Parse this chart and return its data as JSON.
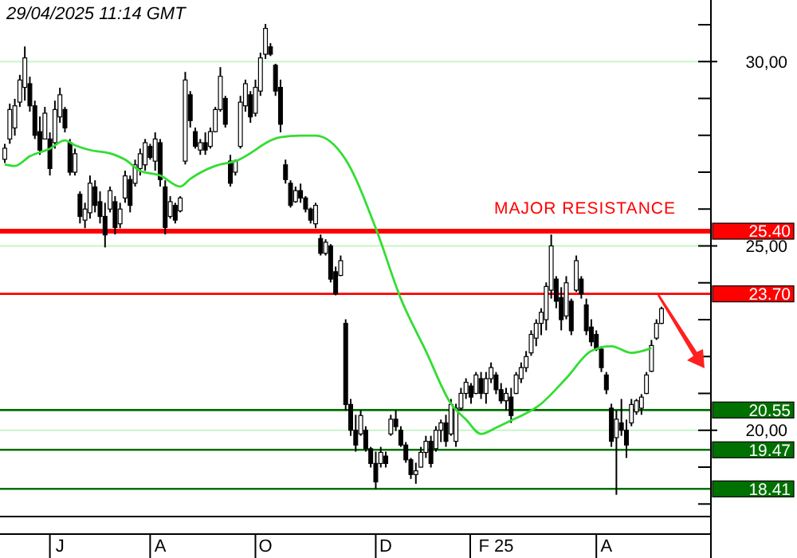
{
  "chart_data": {
    "type": "candlestick",
    "title": "29/04/2025 11:14 GMT",
    "annotations": [
      "MAJOR RESISTANCE"
    ],
    "categories": [
      null,
      null,
      null,
      null,
      null,
      null,
      null,
      null,
      null,
      null,
      null,
      "J",
      null,
      null,
      null,
      null,
      null,
      null,
      null,
      null,
      null,
      null,
      null,
      null,
      null,
      null,
      null,
      null,
      null,
      null,
      null,
      "A",
      null,
      null,
      null,
      null,
      null,
      null,
      null,
      null,
      null,
      null,
      null,
      null,
      null,
      null,
      null,
      null,
      null,
      null,
      null,
      null,
      "O",
      null,
      null,
      null,
      null,
      null,
      null,
      null,
      null,
      null,
      null,
      null,
      null,
      null,
      null,
      null,
      null,
      null,
      null,
      null,
      null,
      null,
      null,
      null,
      "D",
      null,
      null,
      null,
      null,
      null,
      null,
      null,
      null,
      null,
      null,
      null,
      null,
      null,
      null,
      null,
      null,
      null,
      null,
      null,
      null,
      null,
      "F 25",
      null,
      null,
      null,
      null,
      null,
      null,
      null,
      null,
      null,
      null,
      null,
      null,
      null,
      null,
      null,
      null,
      null,
      null,
      null,
      null,
      null,
      "A",
      null,
      null,
      null,
      null,
      null,
      null,
      null,
      null,
      null,
      null,
      null
    ],
    "ylim": [
      17.66,
      31.67
    ],
    "yticks": [
      {
        "value": 20,
        "label": "20,00"
      },
      {
        "value": 25,
        "label": "25,00"
      },
      {
        "value": 30,
        "label": "30,00"
      }
    ],
    "grid": "y",
    "ref_lines": [
      {
        "axis": "y",
        "value": 25.4,
        "label": "25.40",
        "color": "#ff0000"
      },
      {
        "axis": "y",
        "value": 23.7,
        "label": "23.70",
        "color": "#ff0000"
      },
      {
        "axis": "y",
        "value": 20.55,
        "label": "20.55",
        "color": "#007000"
      },
      {
        "axis": "y",
        "value": 19.47,
        "label": "19.47",
        "color": "#007000"
      },
      {
        "axis": "y",
        "value": 18.41,
        "label": "18.41",
        "color": "#007000"
      }
    ],
    "series": [
      {
        "color": "#000000",
        "ohlc": [
          [
            27.35,
            27.77,
            27.25,
            27.65
          ],
          [
            27.9,
            28.86,
            27.77,
            28.7
          ],
          [
            28.2,
            28.99,
            27.99,
            28.8
          ],
          [
            28.9,
            29.64,
            28.77,
            29.5
          ],
          [
            29.3,
            30.41,
            28.94,
            30.1
          ],
          [
            29.4,
            29.59,
            28.64,
            28.8
          ],
          [
            28.8,
            28.94,
            27.9,
            28.0
          ],
          [
            28.1,
            28.51,
            27.47,
            27.6
          ],
          [
            27.9,
            28.77,
            27.9,
            28.6
          ],
          [
            27.9,
            28.08,
            26.91,
            27.1
          ],
          [
            27.8,
            28.94,
            27.64,
            28.7
          ],
          [
            28.5,
            29.29,
            28.34,
            29.1
          ],
          [
            28.7,
            28.77,
            28.08,
            28.2
          ],
          [
            27.8,
            27.9,
            26.91,
            27.0
          ],
          [
            27.0,
            27.64,
            26.91,
            27.5
          ],
          [
            26.4,
            26.48,
            25.61,
            25.8
          ],
          [
            25.7,
            26.17,
            25.48,
            26.0
          ],
          [
            25.9,
            26.91,
            25.74,
            26.7
          ],
          [
            26.6,
            26.78,
            25.91,
            26.1
          ],
          [
            26.2,
            26.48,
            25.61,
            25.8
          ],
          [
            25.8,
            26.17,
            24.96,
            25.3
          ],
          [
            26.0,
            26.61,
            25.91,
            26.5
          ],
          [
            26.2,
            26.35,
            25.31,
            25.5
          ],
          [
            25.6,
            26.17,
            25.48,
            26.0
          ],
          [
            26.3,
            27.04,
            26.17,
            26.9
          ],
          [
            26.8,
            26.91,
            25.91,
            26.1
          ],
          [
            26.7,
            27.34,
            26.61,
            27.2
          ],
          [
            27.1,
            27.64,
            26.91,
            27.5
          ],
          [
            27.2,
            27.9,
            27.04,
            27.8
          ],
          [
            27.7,
            27.77,
            27.34,
            27.4
          ],
          [
            27.3,
            28.08,
            27.04,
            27.9
          ],
          [
            27.8,
            27.9,
            26.61,
            26.8
          ],
          [
            26.6,
            26.78,
            25.31,
            25.5
          ],
          [
            25.8,
            26.35,
            25.74,
            26.2
          ],
          [
            26.1,
            26.17,
            25.61,
            25.7
          ],
          [
            25.95,
            26.35,
            25.91,
            26.3
          ],
          [
            27.3,
            29.72,
            27.21,
            29.5
          ],
          [
            29.1,
            29.2,
            28.21,
            28.4
          ],
          [
            28.1,
            28.21,
            27.64,
            27.7
          ],
          [
            27.6,
            27.9,
            27.47,
            27.8
          ],
          [
            27.8,
            28.08,
            27.47,
            27.6
          ],
          [
            27.7,
            28.21,
            27.64,
            28.1
          ],
          [
            28.1,
            28.77,
            28.08,
            28.7
          ],
          [
            28.7,
            29.85,
            28.64,
            29.6
          ],
          [
            29.0,
            29.07,
            28.21,
            28.3
          ],
          [
            27.3,
            27.47,
            26.61,
            26.7
          ],
          [
            27.0,
            27.34,
            26.91,
            27.3
          ],
          [
            27.7,
            29.07,
            27.64,
            28.9
          ],
          [
            28.8,
            29.51,
            28.64,
            29.4
          ],
          [
            29.1,
            29.2,
            28.34,
            28.5
          ],
          [
            28.6,
            29.51,
            28.51,
            29.3
          ],
          [
            29.2,
            30.24,
            29.07,
            30.1
          ],
          [
            30.2,
            31.02,
            30.07,
            30.9
          ],
          [
            30.4,
            30.5,
            30.15,
            30.2
          ],
          [
            29.9,
            29.94,
            29.07,
            29.2
          ],
          [
            29.3,
            29.51,
            28.08,
            28.3
          ],
          [
            27.2,
            27.34,
            26.69,
            26.8
          ],
          [
            26.7,
            26.78,
            26.04,
            26.1
          ],
          [
            26.2,
            26.61,
            26.17,
            26.5
          ],
          [
            26.5,
            26.69,
            26.17,
            26.3
          ],
          [
            26.3,
            26.35,
            25.91,
            26.0
          ],
          [
            26.0,
            26.04,
            25.61,
            25.7
          ],
          [
            25.6,
            26.17,
            25.48,
            26.1
          ],
          [
            25.2,
            25.31,
            24.74,
            24.8
          ],
          [
            24.8,
            25.18,
            24.74,
            25.1
          ],
          [
            25.0,
            25.05,
            24.01,
            24.1
          ],
          [
            24.3,
            24.44,
            23.66,
            23.7
          ],
          [
            24.2,
            24.74,
            24.18,
            24.6
          ],
          [
            22.9,
            23.01,
            20.54,
            20.7
          ],
          [
            20.7,
            20.85,
            19.85,
            20.0
          ],
          [
            20.0,
            20.42,
            19.42,
            19.6
          ],
          [
            19.9,
            20.54,
            19.85,
            20.4
          ],
          [
            20.0,
            20.11,
            19.42,
            19.5
          ],
          [
            19.5,
            19.55,
            18.99,
            19.1
          ],
          [
            19.1,
            19.42,
            18.41,
            18.6
          ],
          [
            19.1,
            19.55,
            18.99,
            19.4
          ],
          [
            19.3,
            19.42,
            18.99,
            19.1
          ],
          [
            19.9,
            20.42,
            19.85,
            20.3
          ],
          [
            20.3,
            20.54,
            19.98,
            20.1
          ],
          [
            20.0,
            20.11,
            19.55,
            19.6
          ],
          [
            19.6,
            19.68,
            19.12,
            19.2
          ],
          [
            19.2,
            19.25,
            18.68,
            18.8
          ],
          [
            18.8,
            19.12,
            18.55,
            18.9
          ],
          [
            19.0,
            19.55,
            18.99,
            19.4
          ],
          [
            19.4,
            19.85,
            19.25,
            19.7
          ],
          [
            19.7,
            19.85,
            18.99,
            19.1
          ],
          [
            19.5,
            20.11,
            19.42,
            20.0
          ],
          [
            20.0,
            20.29,
            19.68,
            20.2
          ],
          [
            20.2,
            20.42,
            19.55,
            19.7
          ],
          [
            19.9,
            20.85,
            19.85,
            20.7
          ],
          [
            19.7,
            20.72,
            19.55,
            20.6
          ],
          [
            20.6,
            21.15,
            20.54,
            21.0
          ],
          [
            21.0,
            21.41,
            20.85,
            21.3
          ],
          [
            21.2,
            21.28,
            20.72,
            20.9
          ],
          [
            21.0,
            21.58,
            20.98,
            21.5
          ],
          [
            21.4,
            21.58,
            20.85,
            21.0
          ],
          [
            21.0,
            21.58,
            20.72,
            21.4
          ],
          [
            21.4,
            21.84,
            21.28,
            21.7
          ],
          [
            21.5,
            21.58,
            20.98,
            21.1
          ],
          [
            21.1,
            21.28,
            20.72,
            20.8
          ],
          [
            20.8,
            21.15,
            20.54,
            21.0
          ],
          [
            20.9,
            21.15,
            20.2,
            20.4
          ],
          [
            21.0,
            21.58,
            20.98,
            21.5
          ],
          [
            21.4,
            21.84,
            21.28,
            21.7
          ],
          [
            21.7,
            22.15,
            21.58,
            22.0
          ],
          [
            22.1,
            22.71,
            22.02,
            22.6
          ],
          [
            22.5,
            23.01,
            22.28,
            22.9
          ],
          [
            22.9,
            23.31,
            22.58,
            23.2
          ],
          [
            23.0,
            24.01,
            22.71,
            23.9
          ],
          [
            23.8,
            25.31,
            23.57,
            25.0
          ],
          [
            24.1,
            24.18,
            23.31,
            23.5
          ],
          [
            23.6,
            23.88,
            22.71,
            23.0
          ],
          [
            23.1,
            24.18,
            23.01,
            24.0
          ],
          [
            23.5,
            23.57,
            22.58,
            22.7
          ],
          [
            23.8,
            24.74,
            23.75,
            24.6
          ],
          [
            24.1,
            24.18,
            23.57,
            23.7
          ],
          [
            23.4,
            23.57,
            22.58,
            22.7
          ],
          [
            22.8,
            23.01,
            22.28,
            22.4
          ],
          [
            22.6,
            22.71,
            22.15,
            22.2
          ],
          [
            22.2,
            22.28,
            21.58,
            21.7
          ],
          [
            21.5,
            21.58,
            20.98,
            21.1
          ],
          [
            20.6,
            20.72,
            19.55,
            19.7
          ],
          [
            19.8,
            20.54,
            18.25,
            20.3
          ],
          [
            20.2,
            20.85,
            19.85,
            20.0
          ],
          [
            20.0,
            20.29,
            19.25,
            19.6
          ],
          [
            20.2,
            20.85,
            20.11,
            20.7
          ],
          [
            20.5,
            20.85,
            20.42,
            20.8
          ],
          [
            20.6,
            20.98,
            20.42,
            20.9
          ],
          [
            21.0,
            21.58,
            20.98,
            21.5
          ],
          [
            21.6,
            22.45,
            21.58,
            22.3
          ],
          [
            22.5,
            23.01,
            22.45,
            22.9
          ],
          [
            22.9,
            23.35,
            22.88,
            23.3
          ]
        ]
      },
      {
        "type": "line",
        "color": "#33dd33",
        "values": [
          27.21,
          null,
          27.17,
          null,
          null,
          27.43,
          null,
          null,
          null,
          27.64,
          null,
          null,
          27.86,
          null,
          27.73,
          null,
          null,
          27.6,
          null,
          null,
          null,
          27.51,
          null,
          null,
          27.34,
          null,
          null,
          27.04,
          null,
          null,
          null,
          26.91,
          null,
          null,
          null,
          26.61,
          null,
          26.82,
          null,
          null,
          null,
          null,
          27.17,
          null,
          null,
          null,
          27.3,
          null,
          null,
          null,
          null,
          null,
          null,
          null,
          null,
          27.95,
          null,
          null,
          null,
          27.99,
          null,
          null,
          27.99,
          null,
          null,
          null,
          null,
          null,
          27.34,
          null,
          null,
          null,
          null,
          null,
          25.48,
          null,
          null,
          null,
          null,
          23.57,
          null,
          null,
          null,
          null,
          22.15,
          null,
          null,
          null,
          null,
          20.72,
          null,
          null,
          20.29,
          null,
          null,
          19.9,
          null,
          null,
          20.07,
          null,
          20.2,
          null,
          null,
          null,
          null,
          null,
          null,
          20.72,
          null,
          null,
          null,
          null,
          21.41,
          null,
          null,
          null,
          null,
          22.15,
          null,
          null,
          null,
          22.28,
          null,
          null,
          null,
          22.1,
          null,
          null,
          null,
          22.23,
          null,
          null
        ]
      }
    ]
  }
}
